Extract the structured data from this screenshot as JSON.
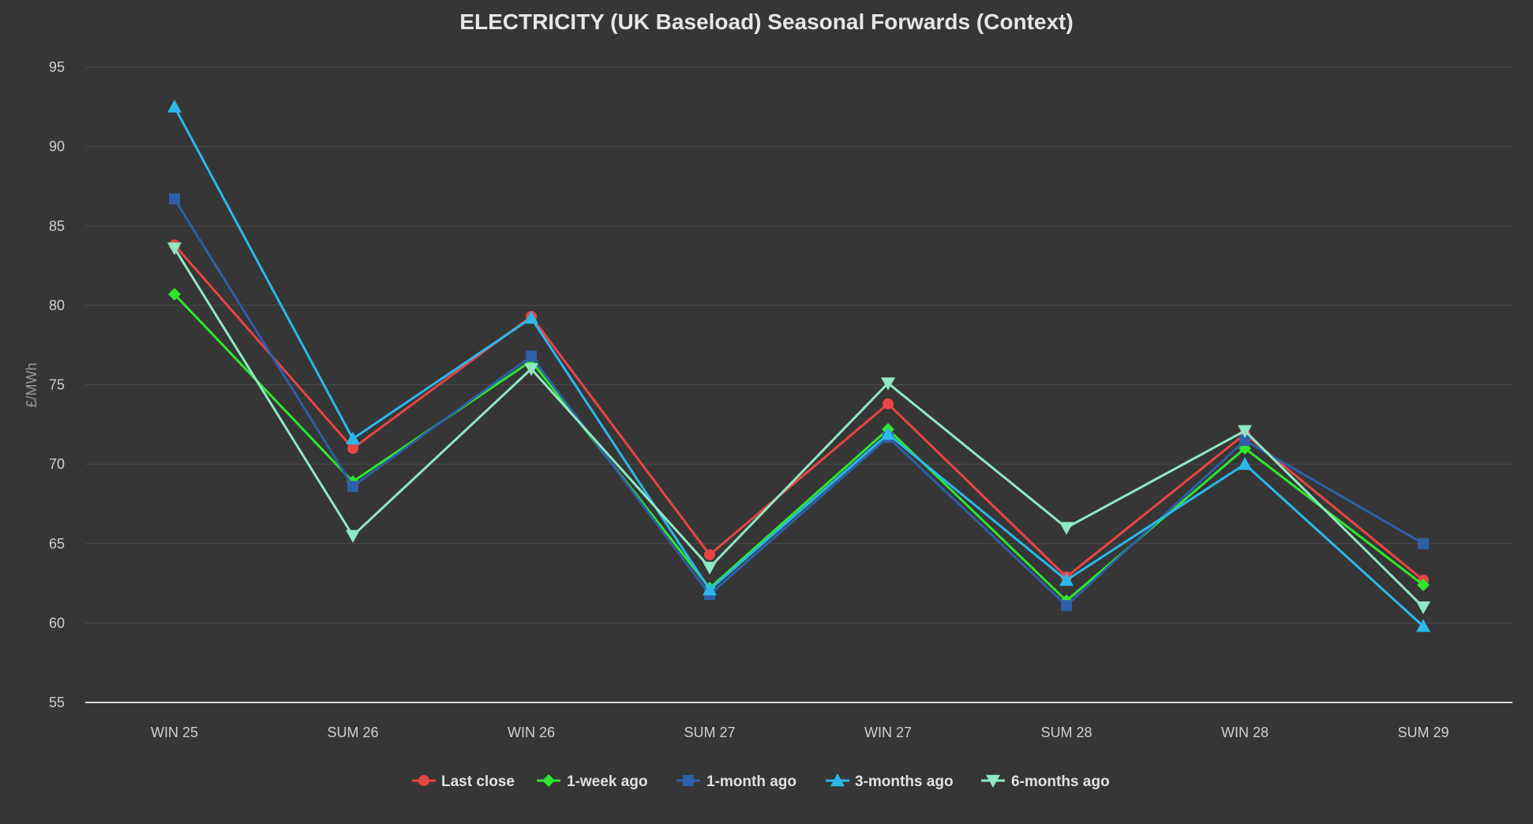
{
  "chart_data": {
    "type": "line",
    "title": "ELECTRICITY (UK Baseload) Seasonal Forwards (Context)",
    "xlabel": "",
    "ylabel": "£/MWh",
    "ylim": [
      55,
      95
    ],
    "yticks": [
      55,
      60,
      65,
      70,
      75,
      80,
      85,
      90,
      95
    ],
    "grid": true,
    "legend_position": "bottom-center",
    "categories": [
      "WIN 25",
      "SUM 26",
      "WIN 26",
      "SUM 27",
      "WIN 27",
      "SUM 28",
      "WIN 28",
      "SUM 29"
    ],
    "series": [
      {
        "name": "Last close",
        "color": "#e84545",
        "marker": "circle",
        "values": [
          83.8,
          71.0,
          79.3,
          64.3,
          73.8,
          62.9,
          71.9,
          62.7
        ]
      },
      {
        "name": "1-week ago",
        "color": "#2ee62e",
        "marker": "diamond",
        "values": [
          80.7,
          68.9,
          76.5,
          62.2,
          72.2,
          61.4,
          71.0,
          62.4
        ]
      },
      {
        "name": "1-month ago",
        "color": "#2e5fa8",
        "marker": "square",
        "values": [
          86.7,
          68.6,
          76.8,
          61.8,
          71.7,
          61.1,
          71.5,
          65.0
        ]
      },
      {
        "name": "3-months ago",
        "color": "#2bb8ea",
        "marker": "triangle-up",
        "values": [
          92.5,
          71.6,
          79.2,
          62.1,
          71.9,
          62.7,
          70.0,
          59.8
        ]
      },
      {
        "name": "6-months ago",
        "color": "#8ee8c4",
        "marker": "triangle-down",
        "values": [
          83.6,
          65.5,
          76.0,
          63.5,
          75.1,
          66.0,
          72.1,
          61.0
        ]
      }
    ]
  }
}
